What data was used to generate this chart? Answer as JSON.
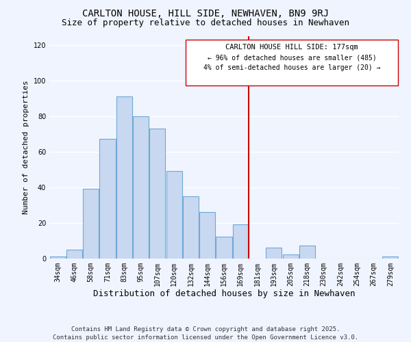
{
  "title": "CARLTON HOUSE, HILL SIDE, NEWHAVEN, BN9 9RJ",
  "subtitle": "Size of property relative to detached houses in Newhaven",
  "xlabel": "Distribution of detached houses by size in Newhaven",
  "ylabel": "Number of detached properties",
  "bar_labels": [
    "34sqm",
    "46sqm",
    "58sqm",
    "71sqm",
    "83sqm",
    "95sqm",
    "107sqm",
    "120sqm",
    "132sqm",
    "144sqm",
    "156sqm",
    "169sqm",
    "181sqm",
    "193sqm",
    "205sqm",
    "218sqm",
    "230sqm",
    "242sqm",
    "254sqm",
    "267sqm",
    "279sqm"
  ],
  "bar_values": [
    1,
    5,
    39,
    67,
    91,
    80,
    73,
    49,
    35,
    26,
    12,
    19,
    0,
    6,
    2,
    7,
    0,
    0,
    0,
    0,
    1
  ],
  "bar_color": "#c8d8f0",
  "bar_edge_color": "#6fa8d6",
  "vline_x_index": 12,
  "vline_color": "#cc0000",
  "ylim": [
    0,
    125
  ],
  "yticks": [
    0,
    20,
    40,
    60,
    80,
    100,
    120
  ],
  "annotation_title": "CARLTON HOUSE HILL SIDE: 177sqm",
  "annotation_line1": "← 96% of detached houses are smaller (485)",
  "annotation_line2": "4% of semi-detached houses are larger (20) →",
  "annotation_box_color": "#ffffff",
  "annotation_box_edge": "#cc0000",
  "footer_line1": "Contains HM Land Registry data © Crown copyright and database right 2025.",
  "footer_line2": "Contains public sector information licensed under the Open Government Licence v3.0.",
  "background_color": "#f0f4ff",
  "grid_color": "#ffffff",
  "title_fontsize": 10,
  "subtitle_fontsize": 9,
  "xlabel_fontsize": 9,
  "ylabel_fontsize": 8,
  "tick_fontsize": 7,
  "footer_fontsize": 6.5,
  "ann_title_fontsize": 7.5,
  "ann_text_fontsize": 7
}
